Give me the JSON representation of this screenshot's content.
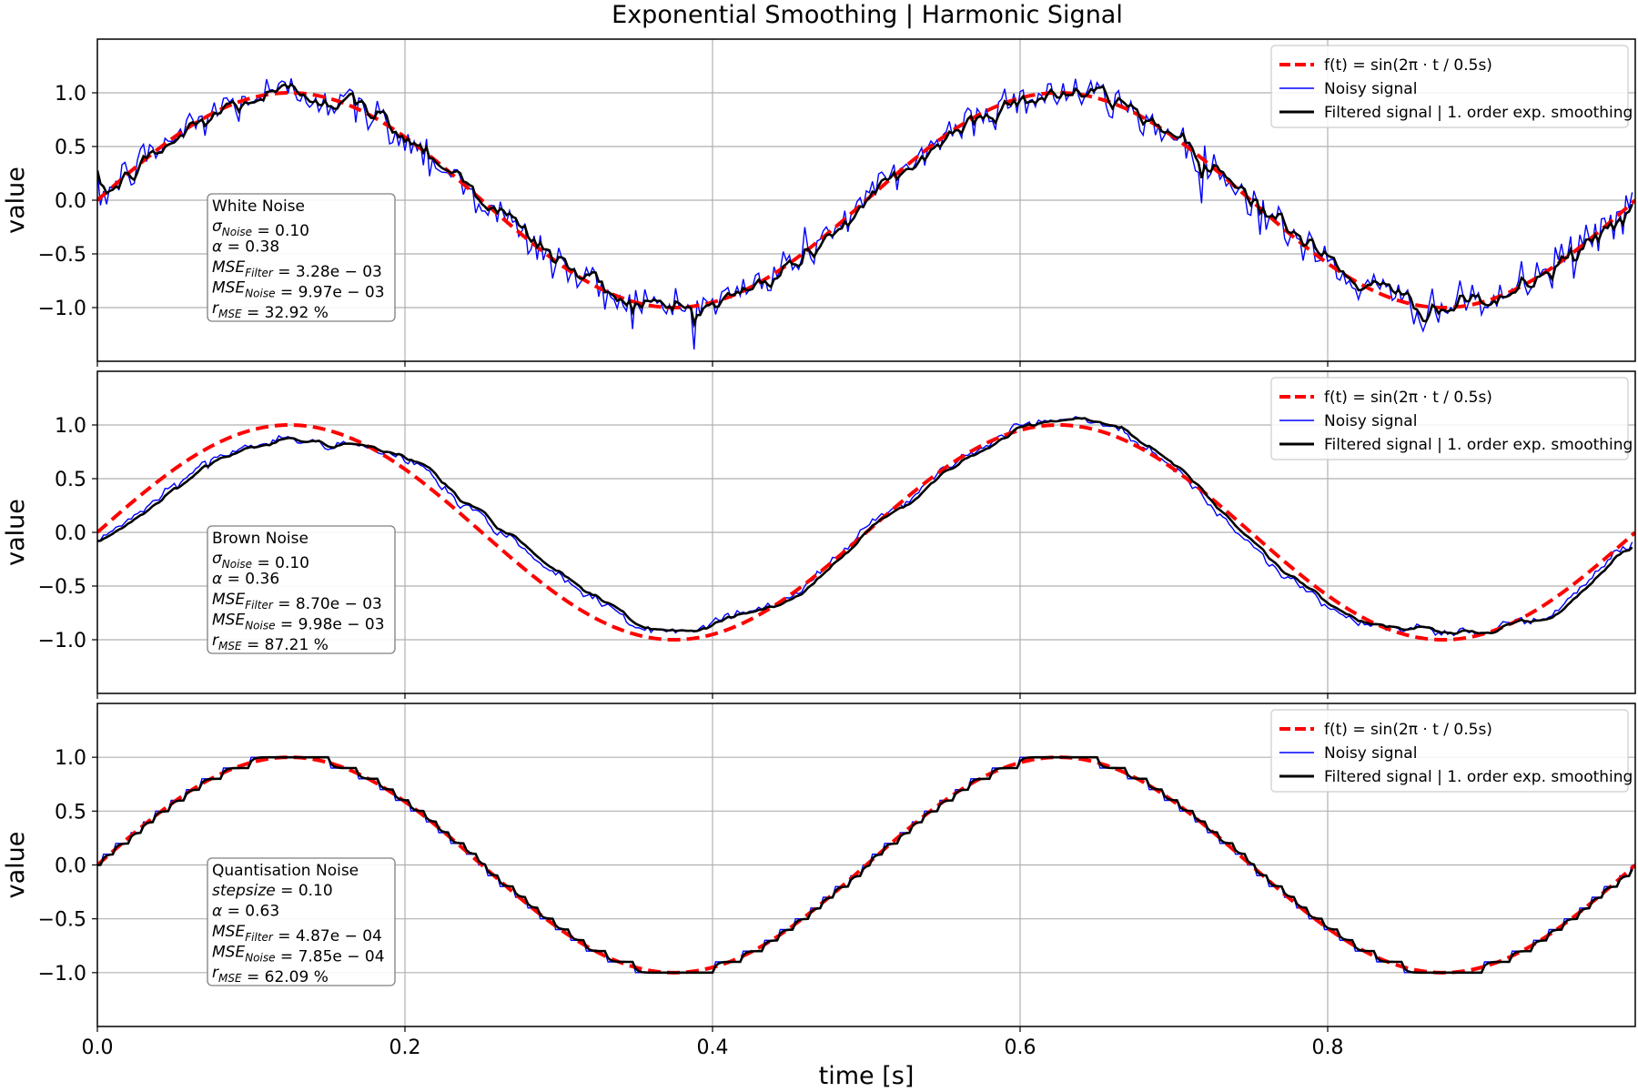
{
  "figure": {
    "title": "Exponential Smoothing | Harmonic Signal"
  },
  "colors": {
    "reference": "#ff0000",
    "noisy": "#0000ff",
    "filtered": "#000000",
    "grid": "#b0b0b0"
  },
  "chart_data": [
    {
      "type": "line",
      "noise_type": "white",
      "xlabel": "",
      "ylabel": "value",
      "xlim": [
        0.0,
        1.0
      ],
      "ylim": [
        -1.5,
        1.5
      ],
      "xticks": [
        0.0,
        0.2,
        0.4,
        0.6,
        0.8
      ],
      "yticks": [
        -1.0,
        -0.5,
        0.0,
        0.5,
        1.0
      ],
      "ytick_labels": [
        "−1.0",
        "−0.5",
        "0.0",
        "0.5",
        "1.0"
      ],
      "grid": true,
      "legend_position": "top-right",
      "series": [
        {
          "name": "f(t) = sin(2π · t / 0.5s)",
          "style": "dashed",
          "function": "sin",
          "amplitude": 1.0,
          "period": 0.5
        },
        {
          "name": "Noisy signal",
          "style": "solid",
          "noise_std": 0.1
        },
        {
          "name": "Filtered signal | 1. order exp. smoothing",
          "style": "solid",
          "alpha": 0.38
        }
      ],
      "info_box": {
        "title": "White Noise",
        "line1": {
          "symbol": "σ",
          "sub": "Noise",
          "value": "0.10"
        },
        "line2": {
          "symbol": "α",
          "value": "0.38"
        },
        "line3": {
          "symbol": "MSE",
          "sub": "Filter",
          "value": "3.28e − 03"
        },
        "line4": {
          "symbol": "MSE",
          "sub": "Noise",
          "value": "9.97e − 03"
        },
        "line5": {
          "symbol": "r",
          "sub": "MSE",
          "value": "32.92 %"
        }
      }
    },
    {
      "type": "line",
      "noise_type": "brown",
      "xlabel": "",
      "ylabel": "value",
      "xlim": [
        0.0,
        1.0
      ],
      "ylim": [
        -1.5,
        1.5
      ],
      "xticks": [
        0.0,
        0.2,
        0.4,
        0.6,
        0.8
      ],
      "yticks": [
        -1.0,
        -0.5,
        0.0,
        0.5,
        1.0
      ],
      "ytick_labels": [
        "−1.0",
        "−0.5",
        "0.0",
        "0.5",
        "1.0"
      ],
      "grid": true,
      "legend_position": "top-right",
      "series": [
        {
          "name": "f(t) = sin(2π · t / 0.5s)",
          "style": "dashed",
          "function": "sin",
          "amplitude": 1.0,
          "period": 0.5
        },
        {
          "name": "Noisy signal",
          "style": "solid",
          "noise_std": 0.1
        },
        {
          "name": "Filtered signal | 1. order exp. smoothing",
          "style": "solid",
          "alpha": 0.36
        }
      ],
      "info_box": {
        "title": "Brown Noise",
        "line1": {
          "symbol": "σ",
          "sub": "Noise",
          "value": "0.10"
        },
        "line2": {
          "symbol": "α",
          "value": "0.36"
        },
        "line3": {
          "symbol": "MSE",
          "sub": "Filter",
          "value": "8.70e − 03"
        },
        "line4": {
          "symbol": "MSE",
          "sub": "Noise",
          "value": "9.98e − 03"
        },
        "line5": {
          "symbol": "r",
          "sub": "MSE",
          "value": "87.21 %"
        }
      }
    },
    {
      "type": "line",
      "noise_type": "quantisation",
      "xlabel": "time [s]",
      "ylabel": "value",
      "xlim": [
        0.0,
        1.0
      ],
      "ylim": [
        -1.5,
        1.5
      ],
      "xticks": [
        0.0,
        0.2,
        0.4,
        0.6,
        0.8
      ],
      "xtick_labels": [
        "0.0",
        "0.2",
        "0.4",
        "0.6",
        "0.8"
      ],
      "yticks": [
        -1.0,
        -0.5,
        0.0,
        0.5,
        1.0
      ],
      "ytick_labels": [
        "−1.0",
        "−0.5",
        "0.0",
        "0.5",
        "1.0"
      ],
      "grid": true,
      "legend_position": "top-right",
      "series": [
        {
          "name": "f(t) = sin(2π · t / 0.5s)",
          "style": "dashed",
          "function": "sin",
          "amplitude": 1.0,
          "period": 0.5
        },
        {
          "name": "Noisy signal",
          "style": "solid",
          "quantisation_step": 0.1
        },
        {
          "name": "Filtered signal | 1. order exp. smoothing",
          "style": "solid",
          "alpha": 0.63
        }
      ],
      "info_box": {
        "title": "Quantisation Noise",
        "line1": {
          "symbol": "stepsize",
          "value": "0.10"
        },
        "line2": {
          "symbol": "α",
          "value": "0.63"
        },
        "line3": {
          "symbol": "MSE",
          "sub": "Filter",
          "value": "4.87e − 04"
        },
        "line4": {
          "symbol": "MSE",
          "sub": "Noise",
          "value": "7.85e − 04"
        },
        "line5": {
          "symbol": "r",
          "sub": "MSE",
          "value": "62.09 %"
        }
      }
    }
  ]
}
